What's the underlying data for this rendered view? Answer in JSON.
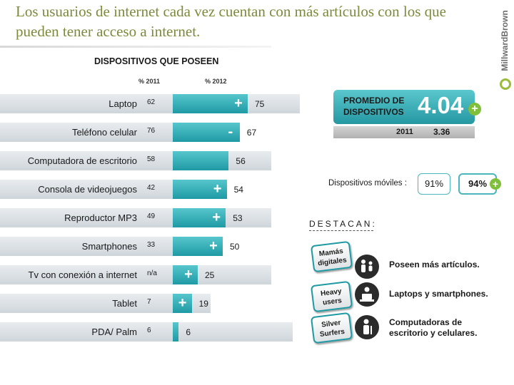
{
  "page": {
    "title": "Los usuarios de internet cada vez cuentan con más artículos con los que pueden tener acceso a internet.",
    "brand": "MillwardBrown"
  },
  "chart_data": {
    "type": "bar",
    "title": "DISPOSITIVOS QUE POSEEN",
    "col_2011": "% 2011",
    "col_2012": "% 2012",
    "categories": [
      "Laptop",
      "Teléfono celular",
      "Computadora de escritorio",
      "Consola de videojuegos",
      "Reproductor MP3",
      "Smartphones",
      "Tv con conexión a internet",
      "Tablet",
      "PDA/ Palm"
    ],
    "series": [
      {
        "name": "% 2011",
        "values": [
          "62",
          "76",
          "58",
          "42",
          "49",
          "33",
          "n/a",
          "7",
          "6"
        ]
      },
      {
        "name": "% 2012",
        "values": [
          75,
          67,
          56,
          54,
          53,
          50,
          25,
          19,
          6
        ]
      }
    ],
    "trend": [
      "+",
      "-",
      "",
      "+",
      "+",
      "+",
      "+",
      "+",
      ""
    ]
  },
  "average": {
    "label": "PROMEDIO DE DISPOSITIVOS",
    "value": "4.04",
    "plus": "+",
    "year_2011": "2011",
    "value_2011": "3.36"
  },
  "mobile": {
    "label": "Dispositivos móviles :",
    "value_2011": "91%",
    "value_2012": "94%",
    "plus": "+"
  },
  "highlights": {
    "title": "DESTACAN:",
    "items": [
      {
        "tag": "Mamás digitales",
        "text": "Poseen más artículos.",
        "icon": "family-icon"
      },
      {
        "tag": "Heavy users",
        "text": "Laptops y smartphones.",
        "icon": "laptop-user-icon"
      },
      {
        "tag": "Silver Surfers",
        "text": "Computadoras de escritorio y celulares.",
        "icon": "elder-person-icon"
      }
    ]
  },
  "colors": {
    "bar": "#2aa3ac",
    "row_bg": "#dde2e6",
    "accent": "#7fbf3a",
    "title": "#7d8a3c"
  }
}
